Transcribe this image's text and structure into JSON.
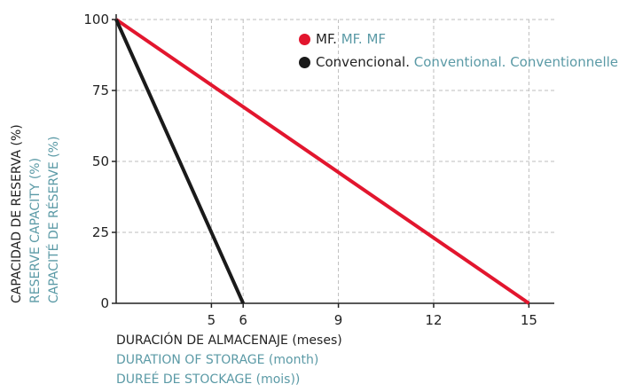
{
  "chart_data": {
    "type": "line",
    "x_ticks": [
      5,
      6,
      9,
      12,
      15
    ],
    "y_ticks": [
      0,
      25,
      50,
      75,
      100
    ],
    "xlim": [
      2,
      15.8
    ],
    "ylim": [
      0,
      100
    ],
    "grid": true,
    "legend_placement": "top-right",
    "series": [
      {
        "name": "MF.",
        "name_en": "MF.",
        "name_fr": "MF",
        "color": "#e2162e",
        "x": [
          2,
          15
        ],
        "y": [
          100,
          0
        ]
      },
      {
        "name": "Convencional.",
        "name_en": "Conventional.",
        "name_fr": "Conventionnelle",
        "color": "#1a1a1a",
        "x": [
          2,
          6
        ],
        "y": [
          100,
          0
        ]
      }
    ],
    "ylabel": {
      "es": "CAPACIDAD DE RESERVA (%)",
      "en": "RESERVE CAPACITY (%)",
      "fr": "CAPACITÉ DE RÉSERVE (%)"
    },
    "xlabel": {
      "es": "DURACIÓN DE ALMACENAJE (meses)",
      "en": "DURATION OF STORAGE (month)",
      "fr": "DUREÉ DE STOCKAGE (mois))"
    },
    "colors": {
      "text": "#222222",
      "secondary_text": "#5b9aa6",
      "grid": "#bdbdbd",
      "axis": "#222222"
    }
  }
}
